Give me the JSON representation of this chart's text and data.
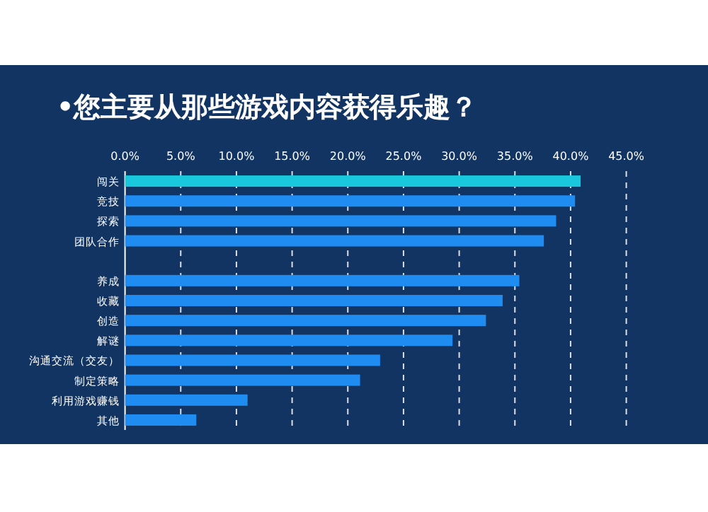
{
  "chart_data": {
    "type": "bar",
    "orientation": "horizontal",
    "title": "•您主要从那些游戏内容获得乐趣？",
    "categories": [
      "闯关",
      "竞技",
      "探索",
      "团队合作",
      null,
      "养成",
      "收藏",
      "创造",
      "解谜",
      "沟通交流（交友）",
      "制定策略",
      "利用游戏赚钱",
      "其他"
    ],
    "values": [
      40.9,
      40.4,
      38.7,
      37.6,
      null,
      35.4,
      33.9,
      32.4,
      29.4,
      22.9,
      21.1,
      11.0,
      6.4
    ],
    "colors": [
      "#19c8dc",
      "#1e8cf0",
      "#1e8cf0",
      "#1e8cf0",
      null,
      "#1e8cf0",
      "#1e8cf0",
      "#1e8cf0",
      "#1e8cf0",
      "#1e8cf0",
      "#1e8cf0",
      "#1e8cf0",
      "#1e8cf0"
    ],
    "xlim": [
      0,
      45
    ],
    "xticks": [
      {
        "value": 0,
        "label": "0.0%"
      },
      {
        "value": 5,
        "label": "5.0%"
      },
      {
        "value": 10,
        "label": "10.0%"
      },
      {
        "value": 15,
        "label": "15.0%"
      },
      {
        "value": 20,
        "label": "20.0%"
      },
      {
        "value": 25,
        "label": "25.0%"
      },
      {
        "value": 30,
        "label": "30.0%"
      },
      {
        "value": 35,
        "label": "35.0%"
      },
      {
        "value": 40,
        "label": "40.0%"
      },
      {
        "value": 45,
        "label": "45.0%"
      }
    ],
    "grid": "x"
  }
}
